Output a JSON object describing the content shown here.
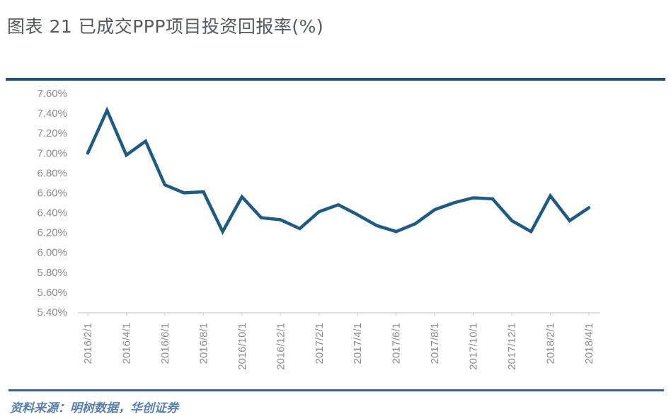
{
  "header": {
    "title": "图表 21 已成交PPP项目投资回报率(%)"
  },
  "footer": {
    "source": "资料来源：明树数据，华创证券"
  },
  "colors": {
    "line": "#1d5a84",
    "rule": "#1f4e79",
    "axis_text": "#8a8a8a",
    "source_text": "#5b7fae"
  },
  "chart_data": {
    "type": "line",
    "title": "图表 21 已成交PPP项目投资回报率(%)",
    "xlabel": "",
    "ylabel": "",
    "ylim": [
      5.4,
      7.6
    ],
    "grid": false,
    "legend": null,
    "y_ticks": [
      "7.60%",
      "7.40%",
      "7.20%",
      "7.00%",
      "6.80%",
      "6.60%",
      "6.40%",
      "6.20%",
      "6.00%",
      "5.80%",
      "5.60%",
      "5.40%"
    ],
    "x_tick_labels": [
      "2016/2/1",
      "2016/4/1",
      "2016/6/1",
      "2016/8/1",
      "2016/10/1",
      "2016/12/1",
      "2017/2/1",
      "2017/4/1",
      "2017/6/1",
      "2017/8/1",
      "2017/10/1",
      "2017/12/1",
      "2018/2/1",
      "2018/4/1"
    ],
    "x": [
      "2016/2/1",
      "2016/3/1",
      "2016/4/1",
      "2016/5/1",
      "2016/6/1",
      "2016/7/1",
      "2016/8/1",
      "2016/9/1",
      "2016/10/1",
      "2016/11/1",
      "2016/12/1",
      "2017/1/1",
      "2017/2/1",
      "2017/3/1",
      "2017/4/1",
      "2017/5/1",
      "2017/6/1",
      "2017/7/1",
      "2017/8/1",
      "2017/9/1",
      "2017/10/1",
      "2017/11/1",
      "2017/12/1",
      "2018/1/1",
      "2018/2/1",
      "2018/3/1",
      "2018/4/1"
    ],
    "series": [
      {
        "name": "已成交PPP项目投资回报率",
        "values": [
          7.0,
          7.43,
          6.98,
          7.12,
          6.68,
          6.6,
          6.61,
          6.21,
          6.56,
          6.35,
          6.33,
          6.24,
          6.41,
          6.48,
          6.38,
          6.27,
          6.21,
          6.29,
          6.43,
          6.5,
          6.55,
          6.54,
          6.32,
          6.21,
          6.57,
          6.32,
          6.45
        ]
      }
    ]
  }
}
